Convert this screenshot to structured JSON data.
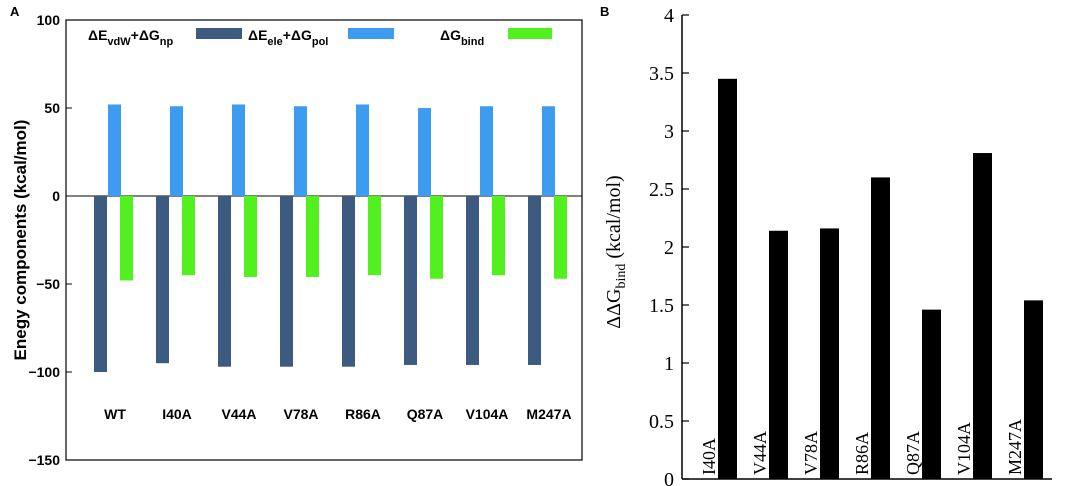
{
  "chart_data": [
    {
      "panel": "A",
      "type": "bar",
      "title": "",
      "xlabel": "",
      "ylabel": "Enegy components (kcal/mol)",
      "ylim": [
        -150,
        100
      ],
      "yticks": [
        -150,
        -100,
        -50,
        0,
        50,
        100
      ],
      "ytick_labels": [
        "−150",
        "−100",
        "−50",
        "0",
        "50",
        "100"
      ],
      "grid": false,
      "categories": [
        "WT",
        "I40A",
        "V44A",
        "V78A",
        "R86A",
        "Q87A",
        "V104A",
        "M247A"
      ],
      "series": [
        {
          "name": "ΔEvdW+ΔGnp",
          "legend": {
            "delta1": "ΔE",
            "sub1": "vdW",
            "mid": "+ΔG",
            "sub2": "np"
          },
          "color": "#3d5a80",
          "values": [
            -100,
            -95,
            -97,
            -97,
            -97,
            -96,
            -96,
            -96
          ]
        },
        {
          "name": "ΔEele+ΔGpol",
          "legend": {
            "delta1": "ΔE",
            "sub1": "ele",
            "mid": "+ΔG",
            "sub2": "pol"
          },
          "color": "#3d9bf0",
          "values": [
            52,
            51,
            52,
            51,
            52,
            50,
            51,
            51
          ]
        },
        {
          "name": "ΔGbind",
          "legend": {
            "delta1": "ΔG",
            "sub1": "bind",
            "mid": "",
            "sub2": ""
          },
          "color": "#52f01e",
          "values": [
            -48,
            -45,
            -46,
            -46,
            -45,
            -47,
            -45,
            -47
          ]
        }
      ]
    },
    {
      "panel": "B",
      "type": "bar",
      "title": "",
      "xlabel": "",
      "ylabel": "ΔΔGbind (kcal/mol)",
      "ylabel_parts": {
        "pre": "ΔΔG",
        "sub": "bind",
        "post": " (kcal/mol)"
      },
      "ylim": [
        0,
        4
      ],
      "yticks": [
        0,
        0.5,
        1,
        1.5,
        2,
        2.5,
        3,
        3.5,
        4
      ],
      "ytick_labels": [
        "0",
        "0.5",
        "1",
        "1.5",
        "2",
        "2.5",
        "3",
        "3.5",
        "4"
      ],
      "grid": false,
      "categories": [
        "I40A",
        "V44A",
        "V78A",
        "R86A",
        "Q87A",
        "V104A",
        "M247A"
      ],
      "series": [
        {
          "name": "ΔΔGbind",
          "color": "#000000",
          "values": [
            3.45,
            2.14,
            2.16,
            2.6,
            1.46,
            2.81,
            1.54
          ]
        }
      ]
    }
  ],
  "colors": {
    "axis": "#000000",
    "background": "#ffffff"
  }
}
